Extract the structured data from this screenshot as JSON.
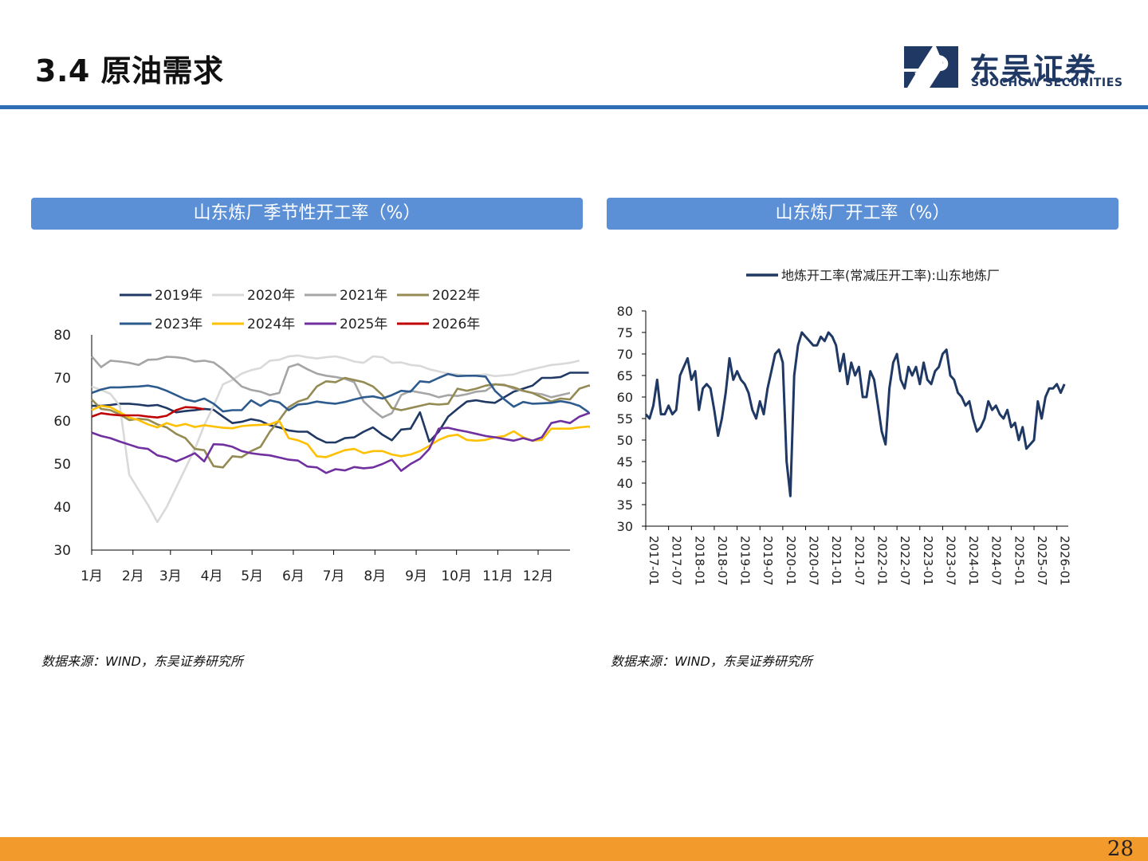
{
  "header": {
    "title": "3.4 原油需求",
    "logo_cn": "东吴证券",
    "logo_en": "SOOCHOW SECURITIES",
    "accent": "#2f6db5"
  },
  "left_panel": {
    "title": "山东炼厂季节性开工率（%）",
    "source": "数据来源：WIND，东吴证券研究所"
  },
  "right_panel": {
    "title": "山东炼厂开工率（%）",
    "source": "数据来源：WIND，东吴证券研究所"
  },
  "page_number": "28",
  "chart_data": [
    {
      "type": "line",
      "ylim": [
        30,
        80
      ],
      "yticks": [
        30,
        40,
        50,
        60,
        70,
        80
      ],
      "xlim": [
        0,
        51
      ],
      "xticks": [
        {
          "label": "1月",
          "x": 0
        },
        {
          "label": "2月",
          "x": 4.4
        },
        {
          "label": "3月",
          "x": 8.4
        },
        {
          "label": "4月",
          "x": 12.8
        },
        {
          "label": "5月",
          "x": 17.1
        },
        {
          "label": "6月",
          "x": 21.5
        },
        {
          "label": "7月",
          "x": 25.8
        },
        {
          "label": "8月",
          "x": 30.2
        },
        {
          "label": "9月",
          "x": 34.6
        },
        {
          "label": "10月",
          "x": 38.9
        },
        {
          "label": "11月",
          "x": 43.3
        },
        {
          "label": "12月",
          "x": 47.6
        }
      ],
      "legend_position": "top",
      "series": [
        {
          "name": "2019年",
          "color": "#1f3864",
          "values": [
            63.5,
            63.5,
            63.7,
            64,
            64,
            63.8,
            63.5,
            63.7,
            63,
            62,
            62.3,
            62.5,
            62.8,
            62.6,
            61,
            59.5,
            59.8,
            60.4,
            60,
            59,
            58.5,
            57.8,
            57.5,
            57.5,
            56,
            55,
            55,
            56,
            56.2,
            57.5,
            58.5,
            56.8,
            55.5,
            58,
            58.2,
            62,
            55.2,
            57.5,
            61,
            62.8,
            64.5,
            64.8,
            64.4,
            64.2,
            65.5,
            66.8,
            67.5,
            68.2,
            70,
            70,
            70.2,
            71.2,
            71.2,
            71.2
          ]
        },
        {
          "name": "2020年",
          "color": "#d9d9d9",
          "values": [
            68,
            67.2,
            66.3,
            63.5,
            47.5,
            44,
            40.5,
            36.5,
            40,
            44.5,
            49,
            53.5,
            59,
            63.5,
            68.5,
            69.5,
            71,
            71.8,
            72.3,
            74,
            74.2,
            75,
            75.2,
            74.8,
            74.5,
            74.8,
            75,
            74.5,
            73.8,
            73.5,
            75,
            74.8,
            73.5,
            73.6,
            73,
            72.8,
            72,
            71.5,
            71,
            70.8,
            70.5,
            70.6,
            70.8,
            70.4,
            70.6,
            70.8,
            71.5,
            72,
            72.5,
            73,
            73.2,
            73.5,
            74
          ]
        },
        {
          "name": "2021年",
          "color": "#a5a5a5",
          "values": [
            75,
            72.5,
            74,
            73.8,
            73.5,
            73,
            74.2,
            74.3,
            74.9,
            74.8,
            74.5,
            73.8,
            74,
            73.6,
            72,
            70,
            68,
            67.2,
            66.8,
            66,
            66.5,
            72.5,
            73.2,
            72,
            71,
            70.5,
            70.2,
            69.8,
            69,
            64.5,
            62.5,
            60.8,
            61.8,
            66,
            67,
            66.6,
            66.2,
            65.5,
            66,
            65.8,
            66.2,
            66.8,
            67,
            68.5,
            68.4,
            67.5,
            67,
            66.5,
            66.2,
            65.5,
            66,
            66.5
          ]
        },
        {
          "name": "2022年",
          "color": "#948a54",
          "values": [
            65,
            62.8,
            62.5,
            61.5,
            60.2,
            60.5,
            60.3,
            59.2,
            58.5,
            57,
            56,
            53.5,
            53.2,
            49.5,
            49.2,
            51.8,
            51.6,
            53,
            54,
            57.5,
            60.2,
            63.2,
            64.5,
            65.2,
            68,
            69.2,
            69,
            70,
            69.5,
            69,
            68,
            66,
            63,
            62.5,
            63,
            63.5,
            64,
            63.8,
            64,
            67.5,
            67,
            67.5,
            68.2,
            68.5,
            68.3,
            67.8,
            67,
            66.5,
            65.5,
            64.5,
            65.2,
            65,
            67.5,
            68.2,
            68
          ]
        },
        {
          "name": "2023年",
          "color": "#2e5b8e",
          "values": [
            66.5,
            67.3,
            67.8,
            67.8,
            67.9,
            68,
            68.2,
            67.8,
            67,
            66,
            65,
            64.5,
            65.2,
            64,
            62.2,
            62.5,
            62.5,
            64.8,
            63.5,
            64.8,
            64.3,
            62.5,
            63.8,
            64,
            64.5,
            64.2,
            64,
            64.4,
            65,
            65.5,
            65.7,
            65.2,
            66,
            67,
            66.8,
            69.2,
            69,
            70,
            70.9,
            70.4,
            70.5,
            70.5,
            70.3,
            67,
            65,
            63.3,
            64.4,
            64,
            64.1,
            64.2,
            64.6,
            64.2,
            63.5,
            62
          ]
        },
        {
          "name": "2024年",
          "color": "#ffc000",
          "values": [
            62.5,
            63.5,
            63.2,
            62,
            60.8,
            60.2,
            59.2,
            58.5,
            59.5,
            58.8,
            59.3,
            58.6,
            59,
            58.7,
            58.4,
            58.3,
            58.8,
            59,
            59.1,
            59.2,
            60,
            56,
            55.5,
            54.6,
            51.8,
            51.6,
            52.4,
            53.2,
            53.5,
            52.5,
            53,
            53,
            52.2,
            51.8,
            52.2,
            53,
            54.2,
            55.6,
            56.5,
            56.8,
            55.6,
            55.4,
            55.6,
            56.2,
            56.5,
            57.6,
            56.2,
            55.4,
            55.6,
            58.2,
            58.2,
            58.2,
            58.5,
            58.7,
            57.5
          ]
        },
        {
          "name": "2025年",
          "color": "#7030a0",
          "values": [
            57.3,
            56.5,
            56,
            55.2,
            54.5,
            53.8,
            53.5,
            52,
            51.5,
            50.6,
            51.5,
            52.5,
            50.6,
            54.6,
            54.5,
            54,
            53,
            52.5,
            52.2,
            52,
            51.5,
            51,
            50.8,
            49.4,
            49.2,
            47.9,
            48.8,
            48.5,
            49.3,
            49,
            49.2,
            50,
            51,
            48.4,
            50,
            51.2,
            53.5,
            58.2,
            58.4,
            57.9,
            57.5,
            57,
            56.5,
            56.2,
            55.8,
            55.4,
            56,
            55.4,
            56.2,
            59.5,
            60,
            59.5,
            61,
            61.8,
            62.2
          ]
        },
        {
          "name": "2026年",
          "color": "#c00000",
          "values": [
            61,
            61.8,
            61.5,
            61.3,
            61.3,
            61.3,
            61,
            60.8,
            61.2,
            62.5,
            63.2,
            63.1,
            62.7
          ]
        }
      ]
    },
    {
      "type": "line",
      "ylim": [
        30,
        80
      ],
      "yticks": [
        30,
        35,
        40,
        45,
        50,
        55,
        60,
        65,
        70,
        75,
        80
      ],
      "xlim": [
        "2017-01",
        "2026-04"
      ],
      "xticks": [
        "2017-01",
        "2017-07",
        "2018-01",
        "2018-07",
        "2019-01",
        "2019-07",
        "2020-01",
        "2020-07",
        "2021-01",
        "2021-07",
        "2022-01",
        "2022-07",
        "2023-01",
        "2023-07",
        "2024-01",
        "2024-07",
        "2025-01",
        "2025-07",
        "2026-01"
      ],
      "legend_position": "top",
      "series": [
        {
          "name": "地炼开工率(常减压开工率):山东地炼厂",
          "color": "#1f3864",
          "x": [
            "2017-01",
            "2017-02",
            "2017-03",
            "2017-04",
            "2017-05",
            "2017-06",
            "2017-07",
            "2017-08",
            "2017-09",
            "2017-10",
            "2017-11",
            "2017-12",
            "2018-01",
            "2018-02",
            "2018-03",
            "2018-04",
            "2018-05",
            "2018-06",
            "2018-07",
            "2018-08",
            "2018-09",
            "2018-10",
            "2018-11",
            "2018-12",
            "2019-01",
            "2019-02",
            "2019-03",
            "2019-04",
            "2019-05",
            "2019-06",
            "2019-07",
            "2019-08",
            "2019-09",
            "2019-10",
            "2019-11",
            "2019-12",
            "2020-01",
            "2020-02",
            "2020-03",
            "2020-04",
            "2020-05",
            "2020-06",
            "2020-07",
            "2020-08",
            "2020-09",
            "2020-10",
            "2020-11",
            "2020-12",
            "2021-01",
            "2021-02",
            "2021-03",
            "2021-04",
            "2021-05",
            "2021-06",
            "2021-07",
            "2021-08",
            "2021-09",
            "2021-10",
            "2021-11",
            "2021-12",
            "2022-01",
            "2022-02",
            "2022-03",
            "2022-04",
            "2022-05",
            "2022-06",
            "2022-07",
            "2022-08",
            "2022-09",
            "2022-10",
            "2022-11",
            "2022-12",
            "2023-01",
            "2023-02",
            "2023-03",
            "2023-04",
            "2023-05",
            "2023-06",
            "2023-07",
            "2023-08",
            "2023-09",
            "2023-10",
            "2023-11",
            "2023-12",
            "2024-01",
            "2024-02",
            "2024-03",
            "2024-04",
            "2024-05",
            "2024-06",
            "2024-07",
            "2024-08",
            "2024-09",
            "2024-10",
            "2024-11",
            "2024-12",
            "2025-01",
            "2025-02",
            "2025-03",
            "2025-04",
            "2025-05",
            "2025-06",
            "2025-07",
            "2025-08",
            "2025-09",
            "2025-10",
            "2025-11",
            "2025-12",
            "2026-01",
            "2026-02",
            "2026-03"
          ],
          "values": [
            56,
            55,
            58,
            64,
            56,
            56,
            58,
            56,
            57,
            65,
            67,
            69,
            64,
            66,
            57,
            62,
            63,
            62,
            57,
            51,
            55,
            61,
            69,
            64,
            66,
            64,
            63,
            61,
            57,
            55,
            59,
            56,
            62,
            66,
            70,
            71,
            68,
            45,
            37,
            65,
            72,
            75,
            74,
            73,
            72,
            72,
            74,
            73,
            75,
            74,
            72,
            66,
            70,
            63,
            68,
            65,
            67,
            60,
            60,
            66,
            64,
            58,
            52,
            49,
            62,
            68,
            70,
            64,
            62,
            67,
            65,
            67,
            63,
            68,
            64,
            63,
            66,
            67,
            70,
            71,
            65,
            64,
            61,
            60,
            58,
            59,
            55,
            52,
            53,
            55,
            59,
            57,
            58,
            56,
            55,
            57,
            53,
            54,
            50,
            53,
            48,
            49,
            50,
            59,
            55,
            60,
            62,
            62,
            63,
            61,
            63
          ]
        }
      ]
    }
  ]
}
